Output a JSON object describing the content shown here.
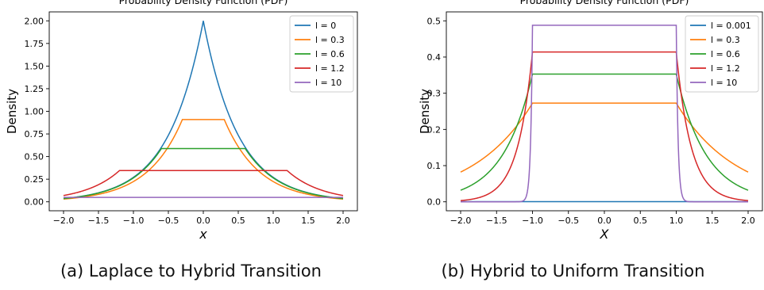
{
  "captions": {
    "a": "(a) Laplace to Hybrid Transition",
    "b": "(b) Hybrid to Uniform Transition"
  },
  "chart_data": [
    {
      "type": "line",
      "title": "Probability Density Function (PDF)",
      "xlabel": "x",
      "ylabel": "Density",
      "xlim": [
        -2.0,
        2.0
      ],
      "ylim": [
        0,
        2.0
      ],
      "xticks": [
        "−2.0",
        "−1.5",
        "−1.0",
        "−0.5",
        "0.0",
        "0.5",
        "1.0",
        "1.5",
        "2.0"
      ],
      "yticks": [
        "0.00",
        "0.25",
        "0.50",
        "0.75",
        "1.00",
        "1.25",
        "1.50",
        "1.75",
        "2.00"
      ],
      "legend_position": "top-right",
      "grid": false,
      "series": [
        {
          "name": "l = 0",
          "color": "#1f77b4",
          "l": 0,
          "plateau_half_width": 0,
          "plateau_density": 2.0
        },
        {
          "name": "l = 0.3",
          "color": "#ff7f0e",
          "l": 0.3,
          "plateau_half_width": 0.3,
          "plateau_density": 0.909
        },
        {
          "name": "l = 0.6",
          "color": "#2ca02c",
          "l": 0.6,
          "plateau_half_width": 0.6,
          "plateau_density": 0.588
        },
        {
          "name": "l = 1.2",
          "color": "#d62728",
          "l": 1.2,
          "plateau_half_width": 1.2,
          "plateau_density": 0.345
        },
        {
          "name": "l = 10",
          "color": "#9467bd",
          "l": 10,
          "plateau_half_width": 10,
          "plateau_density": 0.049
        }
      ]
    },
    {
      "type": "line",
      "title": "Probability Density Function (PDF)",
      "xlabel": "X",
      "ylabel": "Density",
      "xlim": [
        -2.0,
        2.0
      ],
      "ylim": [
        0,
        0.5
      ],
      "xticks": [
        "−2.0",
        "−1.5",
        "−1.0",
        "−0.5",
        "0.0",
        "0.5",
        "1.0",
        "1.5",
        "2.0"
      ],
      "yticks": [
        "0.0",
        "0.1",
        "0.2",
        "0.3",
        "0.4",
        "0.5"
      ],
      "legend_position": "top-right",
      "grid": false,
      "series": [
        {
          "name": "l = 0.001",
          "color": "#1f77b4",
          "l": 0.001,
          "plateau_half_width": 1.0,
          "plateau_density": 0.0005
        },
        {
          "name": "l = 0.3",
          "color": "#ff7f0e",
          "l": 0.3,
          "plateau_half_width": 1.0,
          "plateau_density": 0.2727
        },
        {
          "name": "l = 0.6",
          "color": "#2ca02c",
          "l": 0.6,
          "plateau_half_width": 1.0,
          "plateau_density": 0.3529
        },
        {
          "name": "l = 1.2",
          "color": "#d62728",
          "l": 1.2,
          "plateau_half_width": 1.0,
          "plateau_density": 0.4138
        },
        {
          "name": "l = 10",
          "color": "#9467bd",
          "l": 10,
          "plateau_half_width": 1.0,
          "plateau_density": 0.4878
        }
      ]
    }
  ]
}
